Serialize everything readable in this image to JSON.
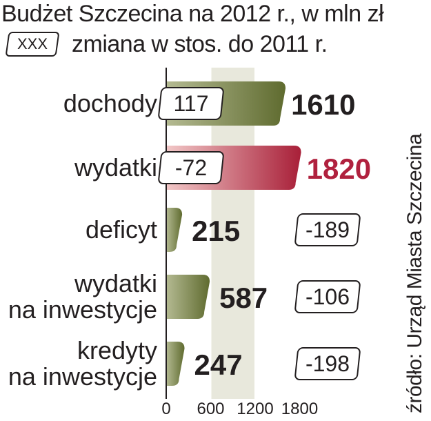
{
  "title": "Budżet Szczecina na 2012 r., w mln zł",
  "legend": {
    "box_label": "XXX",
    "text": "zmiana w stos. do 2011 r."
  },
  "source": "źródło: Urząd Miasta Szczecina",
  "colors": {
    "bar_olive": "#6e7a3c",
    "bar_red": "#b0213e",
    "plot_band": "#e8e8dc",
    "text": "#231f20"
  },
  "chart_data": {
    "type": "bar",
    "orientation": "horizontal",
    "title": "Budżet Szczecina na 2012 r., w mln zł",
    "categories": [
      [
        "dochody"
      ],
      [
        "wydatki"
      ],
      [
        "deficyt"
      ],
      [
        "wydatki",
        "na inwestycje"
      ],
      [
        "kredyty",
        "na inwestycje"
      ]
    ],
    "values": [
      1610,
      1820,
      215,
      587,
      247
    ],
    "value_labels": [
      "1610",
      "1820",
      "215",
      "587",
      "247"
    ],
    "changes": [
      "117",
      "-72",
      "-189",
      "-106",
      "-198"
    ],
    "highlight_index": 1,
    "xlim": [
      0,
      1850
    ],
    "xticks": [
      0,
      600,
      1200,
      1800
    ],
    "xtick_labels": [
      "0",
      "600",
      "1200",
      "1800"
    ]
  }
}
